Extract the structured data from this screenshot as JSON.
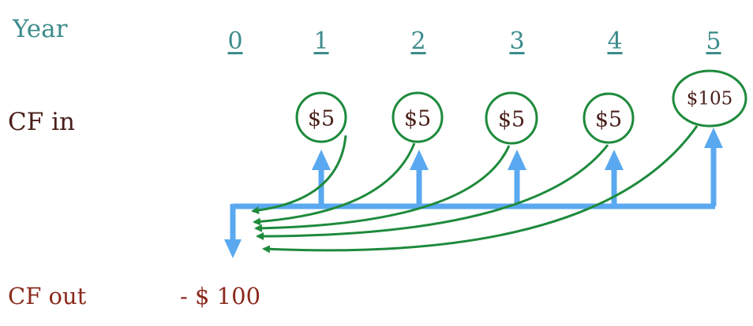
{
  "labels": {
    "year": "Year",
    "cf_in": "CF in",
    "cf_out": "CF out",
    "out_value": "- $ 100"
  },
  "years": [
    "0",
    "1",
    "2",
    "3",
    "4",
    "5"
  ],
  "cash_flows_in": [
    "$5",
    "$5",
    "$5",
    "$5",
    "$105"
  ],
  "colors": {
    "label_teal": "#3d8b8b",
    "timeline_blue": "#5aa9f0",
    "circle_green": "#1e8a3c",
    "text_brown": "#4a1f1a",
    "out_red": "#8b2a1c"
  }
}
